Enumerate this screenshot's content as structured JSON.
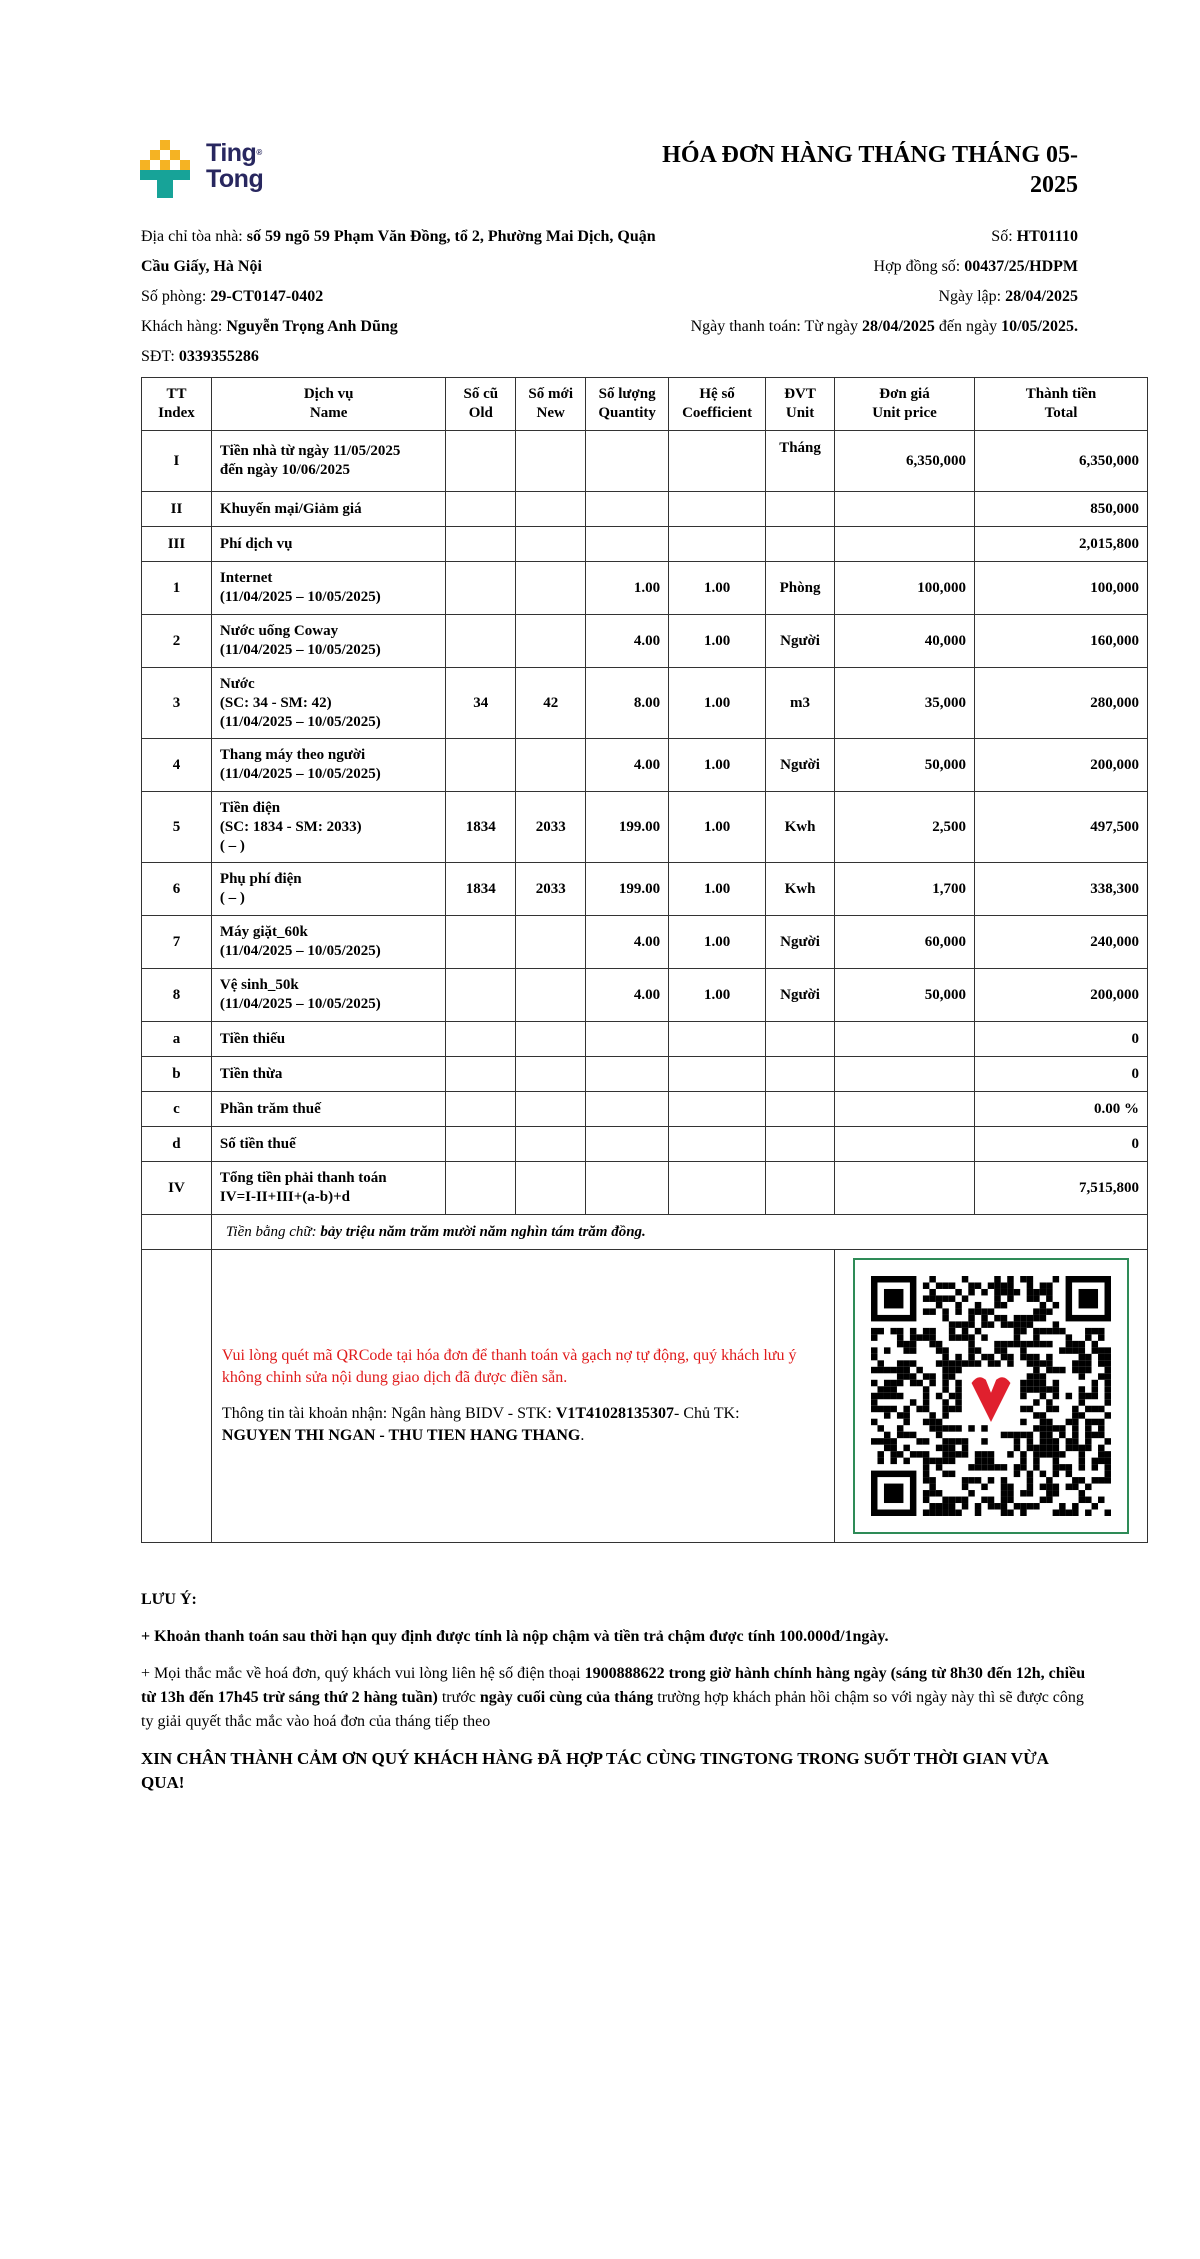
{
  "logo": {
    "line1": "Ting",
    "line2": "Tong",
    "mark": "®",
    "colors": {
      "yellow": "#f5b323",
      "teal": "#17a398",
      "navy": "#28275f"
    }
  },
  "title": "HÓA ĐƠN HÀNG THÁNG THÁNG 05-2025",
  "info": {
    "address_label": "Địa chỉ tòa nhà: ",
    "address_value": "số 59 ngõ 59 Phạm Văn Đồng, tổ 2, Phường Mai Dịch, Quận Cầu Giấy, Hà Nội",
    "room_label": "Số phòng: ",
    "room_value": "29-CT0147-0402",
    "customer_label": "Khách hàng: ",
    "customer_value": "Nguyễn Trọng Anh Dũng",
    "phone_label": "SĐT: ",
    "phone_value": "0339355286",
    "number_label": "Số: ",
    "number_value": "HT01110",
    "contract_label": "Hợp đồng số: ",
    "contract_value": "00437/25/HDPM",
    "date_label": "Ngày lập: ",
    "date_value": "28/04/2025",
    "pay_label": "Ngày thanh toán: Từ ngày ",
    "pay_from": "28/04/2025",
    "pay_mid": " đến ngày ",
    "pay_to": "10/05/2025."
  },
  "table": {
    "headers": [
      [
        "TT",
        "Index"
      ],
      [
        "Dịch vụ",
        "Name"
      ],
      [
        "Số cũ",
        "Old"
      ],
      [
        "Số mới",
        "New"
      ],
      [
        "Số lượng",
        "Quantity"
      ],
      [
        "Hệ số",
        "Coefficient"
      ],
      [
        "ĐVT",
        "Unit"
      ],
      [
        "Đơn giá",
        "Unit price"
      ],
      [
        "Thành tiền",
        "Total"
      ]
    ],
    "rows": [
      {
        "idx": "I",
        "name": [
          "Tiền nhà từ ngày 11/05/2025",
          "đến ngày 10/06/2025"
        ],
        "old": "",
        "new": "",
        "qty": "",
        "coef": "",
        "unit": "Tháng",
        "price": "6,350,000",
        "total": "6,350,000"
      },
      {
        "idx": "II",
        "name": [
          "Khuyến mại/Giảm giá"
        ],
        "old": "",
        "new": "",
        "qty": "",
        "coef": "",
        "unit": "",
        "price": "",
        "total": "850,000"
      },
      {
        "idx": "III",
        "name": [
          "Phí dịch vụ"
        ],
        "old": "",
        "new": "",
        "qty": "",
        "coef": "",
        "unit": "",
        "price": "",
        "total": "2,015,800"
      },
      {
        "idx": "1",
        "name": [
          "Internet",
          "(11/04/2025 – 10/05/2025)"
        ],
        "old": "",
        "new": "",
        "qty": "1.00",
        "coef": "1.00",
        "unit": "Phòng",
        "price": "100,000",
        "total": "100,000"
      },
      {
        "idx": "2",
        "name": [
          "Nước uống Coway",
          "(11/04/2025 – 10/05/2025)"
        ],
        "old": "",
        "new": "",
        "qty": "4.00",
        "coef": "1.00",
        "unit": "Người",
        "price": "40,000",
        "total": "160,000"
      },
      {
        "idx": "3",
        "name": [
          "Nước",
          "(SC: 34 - SM: 42)",
          "(11/04/2025 – 10/05/2025)"
        ],
        "old": "34",
        "new": "42",
        "qty": "8.00",
        "coef": "1.00",
        "unit": "m3",
        "price": "35,000",
        "total": "280,000"
      },
      {
        "idx": "4",
        "name": [
          "Thang máy theo người",
          "(11/04/2025 – 10/05/2025)"
        ],
        "old": "",
        "new": "",
        "qty": "4.00",
        "coef": "1.00",
        "unit": "Người",
        "price": "50,000",
        "total": "200,000"
      },
      {
        "idx": "5",
        "name": [
          "Tiền điện",
          "(SC: 1834 - SM: 2033)",
          "( – )"
        ],
        "old": "1834",
        "new": "2033",
        "qty": "199.00",
        "coef": "1.00",
        "unit": "Kwh",
        "price": "2,500",
        "total": "497,500"
      },
      {
        "idx": "6",
        "name": [
          "Phụ phí điện",
          "( – )"
        ],
        "old": "1834",
        "new": "2033",
        "qty": "199.00",
        "coef": "1.00",
        "unit": "Kwh",
        "price": "1,700",
        "total": "338,300"
      },
      {
        "idx": "7",
        "name": [
          "Máy giặt_60k",
          "(11/04/2025 – 10/05/2025)"
        ],
        "old": "",
        "new": "",
        "qty": "4.00",
        "coef": "1.00",
        "unit": "Người",
        "price": "60,000",
        "total": "240,000"
      },
      {
        "idx": "8",
        "name": [
          "Vệ sinh_50k",
          "(11/04/2025 – 10/05/2025)"
        ],
        "old": "",
        "new": "",
        "qty": "4.00",
        "coef": "1.00",
        "unit": "Người",
        "price": "50,000",
        "total": "200,000"
      },
      {
        "idx": "a",
        "name": [
          "Tiền thiếu"
        ],
        "old": "",
        "new": "",
        "qty": "",
        "coef": "",
        "unit": "",
        "price": "",
        "total": "0"
      },
      {
        "idx": "b",
        "name": [
          "Tiền thừa"
        ],
        "old": "",
        "new": "",
        "qty": "",
        "coef": "",
        "unit": "",
        "price": "",
        "total": "0"
      },
      {
        "idx": "c",
        "name": [
          "Phần trăm thuế"
        ],
        "old": "",
        "new": "",
        "qty": "",
        "coef": "",
        "unit": "",
        "price": "",
        "total": "0.00 %"
      },
      {
        "idx": "d",
        "name": [
          "Số tiền thuế"
        ],
        "old": "",
        "new": "",
        "qty": "",
        "coef": "",
        "unit": "",
        "price": "",
        "total": "0"
      },
      {
        "idx": "IV",
        "name": [
          "Tổng tiền phải thanh toán",
          "IV=I-II+III+(a-b)+d"
        ],
        "old": "",
        "new": "",
        "qty": "",
        "coef": "",
        "unit": "",
        "price": "",
        "total": "7,515,800"
      }
    ],
    "words_label": "Tiền bằng chữ: ",
    "words_value": "bảy triệu năm trăm mười năm nghìn tám trăm đồng."
  },
  "payment": {
    "notice": "Vui lòng quét mã QRCode tại hóa đơn để thanh toán và gạch nợ tự động, quý khách lưu ý không chỉnh sửa nội dung giao dịch đã được điền sẵn.",
    "account_prefix": "Thông tin tài khoản nhận: Ngân hàng BIDV - STK: ",
    "account_number": "V1T41028135307",
    "account_mid": "- Chủ TK: ",
    "account_holder": "NGUYEN THI NGAN - THU TIEN HANG THANG",
    "account_end": ".",
    "qr_icon": "qr-code-with-heart-logo",
    "notice_color": "#e01b1b",
    "qr_border_color": "#2e8b57"
  },
  "notes": {
    "heading": "LƯU Ý:",
    "late": "+ Khoản thanh toán sau thời hạn quy định được tính là nộp chậm và tiền trả chậm được tính 100.000đ/1ngày.",
    "contact_1": "+ Mọi thắc mắc về hoá đơn, quý khách vui lòng liên hệ số điện thoại ",
    "contact_2": "1900888622 trong giờ hành chính hàng ngày (sáng từ 8h30 đến 12h, chiều từ 13h đến 17h45 trừ sáng thứ 2 hàng tuần)",
    "contact_3": " trước ",
    "contact_4": "ngày cuối cùng của tháng",
    "contact_5": " trường hợp khách phản hồi chậm so với ngày này thì sẽ được công ty giải quyết thắc mắc vào hoá đơn của tháng tiếp theo",
    "thanks": "XIN CHÂN THÀNH CẢM ƠN QUÝ KHÁCH HÀNG ĐÃ HỢP TÁC CÙNG TINGTONG TRONG SUỐT THỜI GIAN VỪA QUA!"
  }
}
